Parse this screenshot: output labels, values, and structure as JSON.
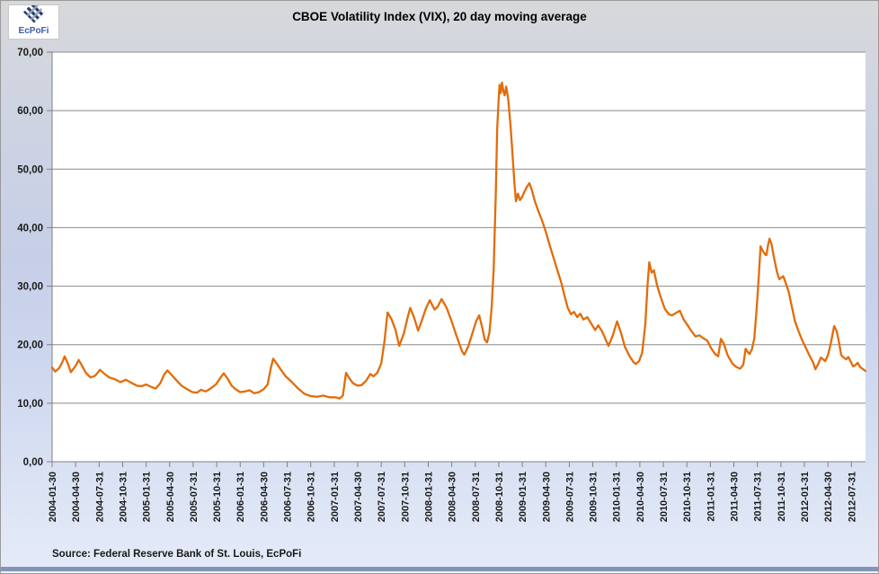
{
  "header": {
    "title": "CBOE Volatility Index (VIX), 20 day moving average",
    "logo_text": "EcPoFi"
  },
  "footer": {
    "source": "Source: Federal Reserve Bank of St. Louis, EcPoFi"
  },
  "colors": {
    "line": "#E36C09",
    "grid": "#8a8a8a",
    "axis": "#808080",
    "label": "#1a1a1a",
    "logo_navy": "#1f3b73",
    "logo_gray": "#9aa4b5",
    "bottom_band": "#8494b4"
  },
  "chart_data": {
    "type": "line",
    "title": "CBOE Volatility Index (VIX), 20 day moving average",
    "xlabel": "",
    "ylabel": "",
    "ylim": [
      0,
      70
    ],
    "y_tick_step": 10,
    "y_tick_labels": [
      "0,00",
      "10,00",
      "20,00",
      "30,00",
      "40,00",
      "50,00",
      "60,00",
      "70,00"
    ],
    "grid": "horizontal",
    "legend_position": "none",
    "x_unit": "months since 2004-01-30",
    "x_max_months": 103.8,
    "x_tick_interval_months": 3,
    "x_tick_labels": [
      "2004-01-30",
      "2004-04-30",
      "2004-07-31",
      "2004-10-31",
      "2005-01-31",
      "2005-04-30",
      "2005-07-31",
      "2005-10-31",
      "2006-01-31",
      "2006-04-30",
      "2006-07-31",
      "2006-10-31",
      "2007-01-31",
      "2007-04-30",
      "2007-07-31",
      "2007-10-31",
      "2008-01-31",
      "2008-04-30",
      "2008-07-31",
      "2008-10-31",
      "2009-01-31",
      "2009-04-30",
      "2009-07-31",
      "2009-10-31",
      "2010-01-31",
      "2010-04-30",
      "2010-07-31",
      "2010-10-31",
      "2011-01-31",
      "2011-04-30",
      "2011-07-31",
      "2011-10-31",
      "2012-01-31",
      "2012-04-30",
      "2012-07-31"
    ],
    "series": [
      {
        "name": "VIX 20 day moving average",
        "color": "#E36C09",
        "points": [
          [
            0,
            16.1
          ],
          [
            0.4,
            15.4
          ],
          [
            0.9,
            16.0
          ],
          [
            1.3,
            17.0
          ],
          [
            1.6,
            18.0
          ],
          [
            2.0,
            16.8
          ],
          [
            2.4,
            15.3
          ],
          [
            3.0,
            16.4
          ],
          [
            3.4,
            17.4
          ],
          [
            3.9,
            16.2
          ],
          [
            4.3,
            15.2
          ],
          [
            4.9,
            14.4
          ],
          [
            5.5,
            14.7
          ],
          [
            6.1,
            15.7
          ],
          [
            6.7,
            15.0
          ],
          [
            7.3,
            14.4
          ],
          [
            8.0,
            14.1
          ],
          [
            8.7,
            13.6
          ],
          [
            9.4,
            14.0
          ],
          [
            10.1,
            13.5
          ],
          [
            10.8,
            13.0
          ],
          [
            11.4,
            12.9
          ],
          [
            12.0,
            13.2
          ],
          [
            12.6,
            12.8
          ],
          [
            13.2,
            12.5
          ],
          [
            13.8,
            13.4
          ],
          [
            14.3,
            14.9
          ],
          [
            14.7,
            15.6
          ],
          [
            15.2,
            14.9
          ],
          [
            15.8,
            14.0
          ],
          [
            16.5,
            13.0
          ],
          [
            17.2,
            12.4
          ],
          [
            17.9,
            11.9
          ],
          [
            18.5,
            11.8
          ],
          [
            19.0,
            12.3
          ],
          [
            19.6,
            12.0
          ],
          [
            20.2,
            12.5
          ],
          [
            20.9,
            13.2
          ],
          [
            21.5,
            14.4
          ],
          [
            21.9,
            15.1
          ],
          [
            22.4,
            14.2
          ],
          [
            22.9,
            13.0
          ],
          [
            23.4,
            12.4
          ],
          [
            24.0,
            11.9
          ],
          [
            24.6,
            12.0
          ],
          [
            25.2,
            12.2
          ],
          [
            25.8,
            11.7
          ],
          [
            26.4,
            11.9
          ],
          [
            27.0,
            12.4
          ],
          [
            27.5,
            13.2
          ],
          [
            27.9,
            16.0
          ],
          [
            28.2,
            17.6
          ],
          [
            28.7,
            16.7
          ],
          [
            29.2,
            15.7
          ],
          [
            29.8,
            14.6
          ],
          [
            30.6,
            13.6
          ],
          [
            31.4,
            12.5
          ],
          [
            32.2,
            11.6
          ],
          [
            33.0,
            11.2
          ],
          [
            33.8,
            11.1
          ],
          [
            34.6,
            11.3
          ],
          [
            35.4,
            11.0
          ],
          [
            36.2,
            11.0
          ],
          [
            36.7,
            10.8
          ],
          [
            37.1,
            11.3
          ],
          [
            37.5,
            15.2
          ],
          [
            37.9,
            14.3
          ],
          [
            38.4,
            13.4
          ],
          [
            39.0,
            13.0
          ],
          [
            39.5,
            13.1
          ],
          [
            40.1,
            13.9
          ],
          [
            40.6,
            15.0
          ],
          [
            41.0,
            14.6
          ],
          [
            41.5,
            15.2
          ],
          [
            42.0,
            16.8
          ],
          [
            42.4,
            20.5
          ],
          [
            42.8,
            25.5
          ],
          [
            43.3,
            24.4
          ],
          [
            43.8,
            22.6
          ],
          [
            44.3,
            19.8
          ],
          [
            44.9,
            22.0
          ],
          [
            45.4,
            24.8
          ],
          [
            45.7,
            26.3
          ],
          [
            46.2,
            24.6
          ],
          [
            46.7,
            22.4
          ],
          [
            47.2,
            24.2
          ],
          [
            47.7,
            26.2
          ],
          [
            48.2,
            27.6
          ],
          [
            48.8,
            26.0
          ],
          [
            49.2,
            26.5
          ],
          [
            49.7,
            27.8
          ],
          [
            50.3,
            26.4
          ],
          [
            50.9,
            24.3
          ],
          [
            51.6,
            21.5
          ],
          [
            52.3,
            18.9
          ],
          [
            52.6,
            18.3
          ],
          [
            53.1,
            19.7
          ],
          [
            53.6,
            21.8
          ],
          [
            54.1,
            24.0
          ],
          [
            54.5,
            25.0
          ],
          [
            54.9,
            22.8
          ],
          [
            55.2,
            20.9
          ],
          [
            55.5,
            20.4
          ],
          [
            55.8,
            22.0
          ],
          [
            56.1,
            26.5
          ],
          [
            56.35,
            33.0
          ],
          [
            56.6,
            45.0
          ],
          [
            56.8,
            57.0
          ],
          [
            57.0,
            62.5
          ],
          [
            57.1,
            64.4
          ],
          [
            57.25,
            63.0
          ],
          [
            57.4,
            64.8
          ],
          [
            57.6,
            63.2
          ],
          [
            57.75,
            62.6
          ],
          [
            57.95,
            64.1
          ],
          [
            58.2,
            62.0
          ],
          [
            58.5,
            57.5
          ],
          [
            58.8,
            51.5
          ],
          [
            59.0,
            47.5
          ],
          [
            59.2,
            44.5
          ],
          [
            59.45,
            45.8
          ],
          [
            59.7,
            44.7
          ],
          [
            59.95,
            45.2
          ],
          [
            60.3,
            46.2
          ],
          [
            60.6,
            47.0
          ],
          [
            60.9,
            47.6
          ],
          [
            61.2,
            46.5
          ],
          [
            61.6,
            44.5
          ],
          [
            62.0,
            43.0
          ],
          [
            62.5,
            41.3
          ],
          [
            63.0,
            39.3
          ],
          [
            63.5,
            37.0
          ],
          [
            64.0,
            34.8
          ],
          [
            64.5,
            32.6
          ],
          [
            65.0,
            30.5
          ],
          [
            65.4,
            28.3
          ],
          [
            65.8,
            26.3
          ],
          [
            66.2,
            25.2
          ],
          [
            66.6,
            25.6
          ],
          [
            67.0,
            24.7
          ],
          [
            67.4,
            25.3
          ],
          [
            67.8,
            24.3
          ],
          [
            68.3,
            24.7
          ],
          [
            68.8,
            23.6
          ],
          [
            69.3,
            22.5
          ],
          [
            69.7,
            23.3
          ],
          [
            70.2,
            22.2
          ],
          [
            70.6,
            21.0
          ],
          [
            71.0,
            19.8
          ],
          [
            71.5,
            21.4
          ],
          [
            72.1,
            24.0
          ],
          [
            72.6,
            22.0
          ],
          [
            73.1,
            19.6
          ],
          [
            73.7,
            18.0
          ],
          [
            74.2,
            17.0
          ],
          [
            74.5,
            16.7
          ],
          [
            74.9,
            17.2
          ],
          [
            75.3,
            18.6
          ],
          [
            75.7,
            23.5
          ],
          [
            76.0,
            30.5
          ],
          [
            76.2,
            34.1
          ],
          [
            76.5,
            32.3
          ],
          [
            76.8,
            32.7
          ],
          [
            77.2,
            30.1
          ],
          [
            77.7,
            28.0
          ],
          [
            78.2,
            26.1
          ],
          [
            78.7,
            25.2
          ],
          [
            79.1,
            25.0
          ],
          [
            79.6,
            25.4
          ],
          [
            80.1,
            25.8
          ],
          [
            80.6,
            24.3
          ],
          [
            81.1,
            23.3
          ],
          [
            81.6,
            22.3
          ],
          [
            82.1,
            21.4
          ],
          [
            82.6,
            21.6
          ],
          [
            83.1,
            21.1
          ],
          [
            83.6,
            20.7
          ],
          [
            84.1,
            19.4
          ],
          [
            84.6,
            18.4
          ],
          [
            85.0,
            18.0
          ],
          [
            85.35,
            21.0
          ],
          [
            85.7,
            20.2
          ],
          [
            86.2,
            18.2
          ],
          [
            86.8,
            16.8
          ],
          [
            87.3,
            16.2
          ],
          [
            87.8,
            15.9
          ],
          [
            88.2,
            16.6
          ],
          [
            88.5,
            19.3
          ],
          [
            88.8,
            18.7
          ],
          [
            89.0,
            18.4
          ],
          [
            89.3,
            19.2
          ],
          [
            89.6,
            21.0
          ],
          [
            89.9,
            26.0
          ],
          [
            90.2,
            32.0
          ],
          [
            90.4,
            36.8
          ],
          [
            90.7,
            36.0
          ],
          [
            91.0,
            35.4
          ],
          [
            91.15,
            35.3
          ],
          [
            91.35,
            37.0
          ],
          [
            91.55,
            38.1
          ],
          [
            91.8,
            37.2
          ],
          [
            92.1,
            35.0
          ],
          [
            92.5,
            32.4
          ],
          [
            92.8,
            31.2
          ],
          [
            93.1,
            31.5
          ],
          [
            93.3,
            31.7
          ],
          [
            93.6,
            30.6
          ],
          [
            94.0,
            29.0
          ],
          [
            94.4,
            26.5
          ],
          [
            94.8,
            24.0
          ],
          [
            95.2,
            22.5
          ],
          [
            95.7,
            20.8
          ],
          [
            96.1,
            19.7
          ],
          [
            96.7,
            18.0
          ],
          [
            97.1,
            17.0
          ],
          [
            97.4,
            15.8
          ],
          [
            97.8,
            16.8
          ],
          [
            98.1,
            17.8
          ],
          [
            98.4,
            17.5
          ],
          [
            98.65,
            17.2
          ],
          [
            99.0,
            18.2
          ],
          [
            99.4,
            20.4
          ],
          [
            99.8,
            23.2
          ],
          [
            100.1,
            22.4
          ],
          [
            100.35,
            20.9
          ],
          [
            100.7,
            18.2
          ],
          [
            101.1,
            17.7
          ],
          [
            101.35,
            17.5
          ],
          [
            101.6,
            17.9
          ],
          [
            101.8,
            17.4
          ],
          [
            102.2,
            16.3
          ],
          [
            102.5,
            16.5
          ],
          [
            102.8,
            16.9
          ],
          [
            103.1,
            16.2
          ],
          [
            103.4,
            15.9
          ],
          [
            103.8,
            15.5
          ]
        ]
      }
    ]
  }
}
